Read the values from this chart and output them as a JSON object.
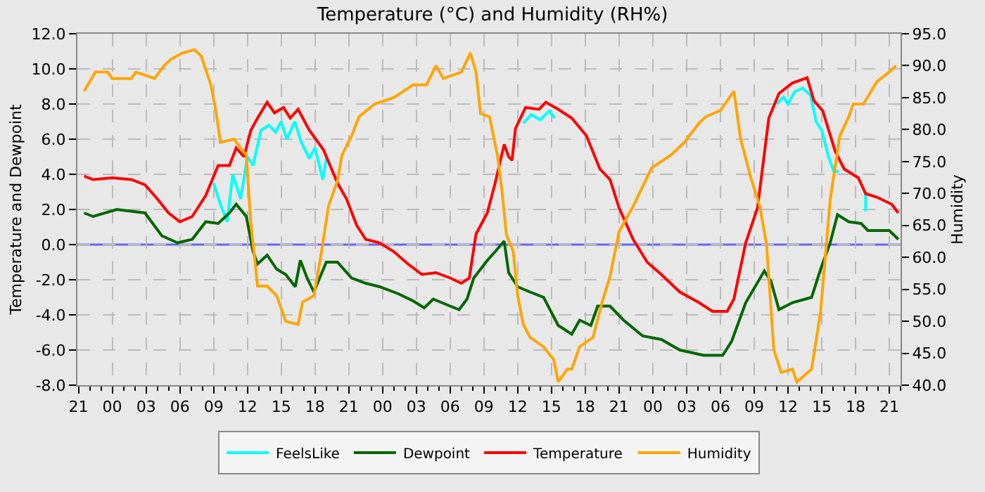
{
  "chart_data": {
    "type": "line",
    "title": "Temperature (°C) and Humidity (RH%)",
    "ylabel": "Temperature and Dewpoint",
    "y2label": "Humidity",
    "xlim": [
      "--01-01T20:54",
      "--01-04T22:00"
    ],
    "xticks": [
      {
        "value": "--01-01T21:00",
        "label": "21"
      },
      {
        "value": "--01-02T00:00",
        "label": "00"
      },
      {
        "value": "--01-02T03:00",
        "label": "03"
      },
      {
        "value": "--01-02T06:00",
        "label": "06"
      },
      {
        "value": "--01-02T09:00",
        "label": "09"
      },
      {
        "value": "--01-02T12:00",
        "label": "12"
      },
      {
        "value": "--01-02T15:00",
        "label": "15"
      },
      {
        "value": "--01-02T18:00",
        "label": "18"
      },
      {
        "value": "--01-02T21:00",
        "label": "21"
      },
      {
        "value": "--01-03T00:00",
        "label": "00"
      },
      {
        "value": "--01-03T03:00",
        "label": "03"
      },
      {
        "value": "--01-03T06:00",
        "label": "06"
      },
      {
        "value": "--01-03T09:00",
        "label": "09"
      },
      {
        "value": "--01-03T12:00",
        "label": "12"
      },
      {
        "value": "--01-03T15:00",
        "label": "15"
      },
      {
        "value": "--01-03T18:00",
        "label": "18"
      },
      {
        "value": "--01-03T21:00",
        "label": "21"
      },
      {
        "value": "--01-04T00:00",
        "label": "00"
      },
      {
        "value": "--01-04T03:00",
        "label": "03"
      },
      {
        "value": "--01-04T06:00",
        "label": "06"
      },
      {
        "value": "--01-04T09:00",
        "label": "09"
      },
      {
        "value": "--01-04T12:00",
        "label": "12"
      },
      {
        "value": "--01-04T15:00",
        "label": "15"
      },
      {
        "value": "--01-04T18:00",
        "label": "18"
      },
      {
        "value": "--01-04T21:00",
        "label": "21"
      }
    ],
    "ylim": [
      -8,
      12
    ],
    "yticks": [
      {
        "value": -8,
        "label": "-8.0"
      },
      {
        "value": -6,
        "label": "-6.0"
      },
      {
        "value": -4,
        "label": "-4.0"
      },
      {
        "value": -2,
        "label": "-2.0"
      },
      {
        "value": 0,
        "label": "0.0"
      },
      {
        "value": 2,
        "label": "2.0"
      },
      {
        "value": 4,
        "label": "4.0"
      },
      {
        "value": 6,
        "label": "6.0"
      },
      {
        "value": 8,
        "label": "8.0"
      },
      {
        "value": 10,
        "label": "10.0"
      },
      {
        "value": 12,
        "label": "12.0"
      }
    ],
    "y2lim": [
      40,
      95
    ],
    "y2ticks": [
      {
        "value": 40,
        "label": "40.0"
      },
      {
        "value": 45,
        "label": "45.0"
      },
      {
        "value": 50,
        "label": "50.0"
      },
      {
        "value": 55,
        "label": "55.0"
      },
      {
        "value": 60,
        "label": "60.0"
      },
      {
        "value": 65,
        "label": "65.0"
      },
      {
        "value": 70,
        "label": "70.0"
      },
      {
        "value": 75,
        "label": "75.0"
      },
      {
        "value": 80,
        "label": "80.0"
      },
      {
        "value": 85,
        "label": "85.0"
      },
      {
        "value": 90,
        "label": "90.0"
      },
      {
        "value": 95,
        "label": "95.0"
      }
    ],
    "grid": true,
    "legend": "bottom",
    "marker": "none",
    "line_style": "solid",
    "ref_lines": [
      {
        "axis": "y",
        "value": 0,
        "color": "#6666ee"
      }
    ],
    "series": [
      {
        "name": "FeelsLike",
        "color": "#00ffff",
        "x": [
          "--01-02T09:00",
          "--01-02T09:36",
          "--01-02T10:12",
          "--01-02T10:42",
          "--01-02T11:24",
          "--01-02T12:00",
          "--01-02T12:30",
          "--01-02T13:12",
          "--01-02T13:54",
          "--01-02T14:30",
          "--01-02T15:00",
          "--01-02T15:30",
          "--01-02T16:12",
          "--01-02T16:48",
          "--01-02T17:30",
          "--01-02T18:00",
          "--01-02T18:42",
          "--01-02T19:00",
          "--01-02T19:06",
          "--01-03T12:30",
          "--01-03T13:12",
          "--01-03T14:00",
          "--01-03T14:48",
          "--01-03T15:18",
          "--01-03T15:24",
          "--01-04T11:00",
          "--01-04T11:36",
          "--01-04T12:00",
          "--01-04T12:36",
          "--01-04T13:18",
          "--01-04T14:00",
          "--01-04T14:30",
          "--01-04T15:00",
          "--01-04T15:36",
          "--01-04T16:06",
          "--01-04T16:30",
          "--01-04T16:36",
          "--01-04T18:54",
          "--01-04T18:54"
        ],
        "values": [
          3.5,
          2.3,
          1.3,
          4.0,
          2.6,
          5.0,
          4.5,
          6.5,
          6.8,
          6.4,
          7.0,
          6.0,
          7.0,
          5.8,
          4.9,
          5.5,
          3.7,
          4.9,
          null,
          6.9,
          7.4,
          7.1,
          7.6,
          7.2,
          null,
          8.0,
          8.4,
          8.0,
          8.7,
          8.9,
          8.5,
          7.0,
          6.5,
          5.0,
          4.1,
          4.2,
          null,
          2.9,
          1.9
        ]
      },
      {
        "name": "Dewpoint",
        "color": "#006600",
        "x": [
          "--01-01T21:30",
          "--01-01T22:18",
          "--01-02T00:24",
          "--01-02T02:54",
          "--01-02T04:24",
          "--01-02T05:48",
          "--01-02T07:06",
          "--01-02T08:18",
          "--01-02T09:24",
          "--01-02T10:24",
          "--01-02T11:00",
          "--01-02T11:54",
          "--01-02T12:30",
          "--01-02T12:54",
          "--01-02T13:45",
          "--01-02T14:36",
          "--01-02T15:24",
          "--01-02T16:15",
          "--01-02T16:42",
          "--01-02T17:18",
          "--01-02T17:54",
          "--01-02T19:00",
          "--01-02T20:00",
          "--01-02T21:15",
          "--01-02T22:30",
          "--01-02T23:45",
          "--01-03T01:24",
          "--01-03T02:42",
          "--01-03T03:42",
          "--01-03T04:30",
          "--01-03T06:00",
          "--01-03T06:48",
          "--01-03T07:30",
          "--01-03T08:06",
          "--01-03T09:18",
          "--01-03T10:00",
          "--01-03T10:48",
          "--01-03T11:12",
          "--01-03T12:00",
          "--01-03T13:06",
          "--01-03T14:18",
          "--01-03T15:36",
          "--01-03T16:48",
          "--01-03T17:30",
          "--01-03T18:30",
          "--01-03T19:06",
          "--01-03T20:12",
          "--01-03T21:24",
          "--01-03T23:06",
          "--01-04T00:45",
          "--01-04T02:24",
          "--01-04T04:30",
          "--01-04T06:12",
          "--01-04T07:00",
          "--01-04T08:15",
          "--01-04T09:54",
          "--01-04T10:30",
          "--01-04T11:12",
          "--01-04T12:24",
          "--01-04T14:06",
          "--01-04T14:54",
          "--01-04T15:45",
          "--01-04T16:24",
          "--01-04T17:24",
          "--01-04T18:30",
          "--01-04T19:06",
          "--01-04T21:00",
          "--01-04T21:48"
        ],
        "values": [
          1.8,
          1.6,
          2.0,
          1.8,
          0.5,
          0.1,
          0.3,
          1.3,
          1.2,
          1.8,
          2.3,
          1.6,
          -0.4,
          -1.1,
          -0.6,
          -1.4,
          -1.7,
          -2.4,
          -0.9,
          -1.9,
          -2.7,
          -1.0,
          -1.0,
          -1.9,
          -2.2,
          -2.4,
          -2.8,
          -3.2,
          -3.6,
          -3.1,
          -3.5,
          -3.7,
          -3.1,
          -1.9,
          -0.9,
          -0.4,
          0.2,
          -1.6,
          -2.4,
          -2.7,
          -3.0,
          -4.6,
          -5.1,
          -4.3,
          -4.6,
          -3.5,
          -3.5,
          -4.3,
          -5.2,
          -5.4,
          -6.0,
          -6.3,
          -6.3,
          -5.5,
          -3.3,
          -1.5,
          -2.1,
          -3.7,
          -3.3,
          -3.0,
          -1.4,
          0.1,
          1.7,
          1.3,
          1.2,
          0.8,
          0.8,
          0.3
        ]
      },
      {
        "name": "Temperature",
        "color": "#ff0000",
        "x": [
          "--01-01T21:30",
          "--01-01T22:18",
          "--01-02T00:00",
          "--01-02T01:42",
          "--01-02T02:54",
          "--01-02T04:00",
          "--01-02T05:00",
          "--01-02T06:00",
          "--01-02T07:06",
          "--01-02T08:18",
          "--01-02T09:24",
          "--01-02T10:24",
          "--01-02T11:00",
          "--01-02T11:42",
          "--01-02T12:18",
          "--01-02T12:54",
          "--01-02T13:45",
          "--01-02T14:24",
          "--01-02T15:12",
          "--01-02T15:48",
          "--01-02T16:30",
          "--01-02T17:30",
          "--01-02T18:45",
          "--01-02T20:00",
          "--01-02T20:48",
          "--01-02T21:42",
          "--01-02T22:30",
          "--01-02T23:45",
          "--01-03T01:00",
          "--01-03T02:15",
          "--01-03T03:30",
          "--01-03T04:45",
          "--01-03T06:00",
          "--01-03T07:00",
          "--01-03T07:42",
          "--01-03T08:18",
          "--01-03T09:18",
          "--01-03T10:00",
          "--01-03T10:48",
          "--01-03T11:12",
          "--01-03T11:30",
          "--01-03T11:48",
          "--01-03T12:42",
          "--01-03T13:54",
          "--01-03T14:30",
          "--01-03T15:36",
          "--01-03T16:48",
          "--01-03T18:06",
          "--01-03T19:18",
          "--01-03T20:12",
          "--01-03T21:00",
          "--01-03T22:15",
          "--01-03T23:30",
          "--01-04T00:45",
          "--01-04T02:24",
          "--01-04T04:06",
          "--01-04T05:18",
          "--01-04T06:36",
          "--01-04T07:12",
          "--01-04T08:15",
          "--01-04T09:18",
          "--01-04T10:18",
          "--01-04T11:12",
          "--01-04T12:24",
          "--01-04T13:42",
          "--01-04T14:18",
          "--01-04T15:06",
          "--01-04T16:12",
          "--01-04T17:00",
          "--01-04T18:15",
          "--01-04T18:54",
          "--01-04T19:54",
          "--01-04T21:12",
          "--01-04T21:48"
        ],
        "values": [
          3.9,
          3.7,
          3.8,
          3.7,
          3.4,
          2.6,
          1.8,
          1.3,
          1.6,
          2.8,
          4.5,
          4.5,
          5.5,
          5.0,
          6.5,
          7.2,
          8.1,
          7.5,
          7.8,
          7.2,
          7.7,
          6.5,
          5.4,
          3.5,
          2.6,
          1.1,
          0.3,
          0.1,
          -0.4,
          -1.1,
          -1.7,
          -1.6,
          -1.9,
          -2.2,
          -1.9,
          0.6,
          1.8,
          3.5,
          5.7,
          5.0,
          4.8,
          6.6,
          7.8,
          7.7,
          8.1,
          7.7,
          7.2,
          6.2,
          4.3,
          3.7,
          2.1,
          0.3,
          -1.0,
          -1.7,
          -2.7,
          -3.3,
          -3.8,
          -3.8,
          -3.1,
          0.1,
          2.1,
          7.2,
          8.6,
          9.2,
          9.5,
          8.2,
          7.6,
          5.3,
          4.3,
          3.8,
          2.9,
          2.7,
          2.3,
          1.8
        ]
      },
      {
        "name": "Humidity",
        "color": "#ffa500",
        "axis": "y2",
        "x": [
          "--01-01T21:30",
          "--01-01T22:30",
          "--01-01T23:36",
          "--01-02T00:00",
          "--01-02T01:42",
          "--01-02T02:06",
          "--01-02T03:45",
          "--01-02T04:36",
          "--01-02T05:12",
          "--01-02T06:15",
          "--01-02T07:18",
          "--01-02T07:54",
          "--01-02T08:45",
          "--01-02T09:12",
          "--01-02T09:36",
          "--01-02T10:48",
          "--01-02T11:54",
          "--01-02T12:18",
          "--01-02T12:54",
          "--01-02T13:45",
          "--01-02T14:36",
          "--01-02T15:24",
          "--01-02T16:30",
          "--01-02T16:54",
          "--01-02T17:54",
          "--01-02T18:30",
          "--01-02T19:12",
          "--01-02T20:00",
          "--01-02T20:24",
          "--01-02T21:15",
          "--01-02T21:54",
          "--01-02T23:18",
          "--01-03T01:00",
          "--01-03T02:42",
          "--01-03T03:54",
          "--01-03T04:45",
          "--01-03T05:24",
          "--01-03T07:00",
          "--01-03T07:48",
          "--01-03T08:18",
          "--01-03T08:42",
          "--01-03T09:30",
          "--01-03T10:12",
          "--01-03T10:36",
          "--01-03T11:00",
          "--01-03T11:36",
          "--01-03T12:00",
          "--01-03T12:30",
          "--01-03T13:06",
          "--01-03T14:18",
          "--01-03T15:12",
          "--01-03T15:36",
          "--01-03T16:24",
          "--01-03T16:48",
          "--01-03T17:30",
          "--01-03T18:42",
          "--01-03T19:30",
          "--01-03T20:12",
          "--01-03T21:00",
          "--01-03T22:15",
          "--01-03T23:54",
          "--01-04T01:36",
          "--01-04T02:48",
          "--01-04T04:06",
          "--01-04T04:42",
          "--01-04T06:00",
          "--01-04T07:12",
          "--01-04T07:48",
          "--01-04T08:42",
          "--01-04T09:30",
          "--01-04T10:06",
          "--01-04T10:45",
          "--01-04T11:24",
          "--01-04T12:24",
          "--01-04T12:48",
          "--01-04T14:06",
          "--01-04T14:54",
          "--01-04T15:45",
          "--01-04T16:36",
          "--01-04T17:24",
          "--01-04T17:48",
          "--01-04T18:42",
          "--01-04T19:54",
          "--01-04T21:00",
          "--01-04T21:36"
        ],
        "values": [
          86,
          89,
          89,
          88,
          88,
          89,
          88,
          90,
          91,
          92,
          92.5,
          91.5,
          87,
          83,
          78,
          78.5,
          76,
          65.5,
          55.5,
          55.5,
          54,
          50,
          49.5,
          53,
          54,
          60,
          68,
          72,
          76,
          79,
          82,
          84,
          85,
          87,
          87,
          90,
          88,
          89,
          92,
          89,
          82.5,
          82,
          76,
          70.5,
          63.5,
          61,
          54,
          49.5,
          47.5,
          46,
          44,
          40.5,
          42.5,
          42.5,
          46,
          47.5,
          53,
          57,
          64,
          68,
          74,
          76,
          78,
          81,
          82,
          83,
          86,
          78.5,
          72.5,
          68,
          62,
          45.5,
          42,
          42.5,
          40.5,
          42.5,
          51.5,
          69,
          79,
          82,
          84,
          84,
          87.5,
          89,
          90
        ]
      }
    ]
  }
}
